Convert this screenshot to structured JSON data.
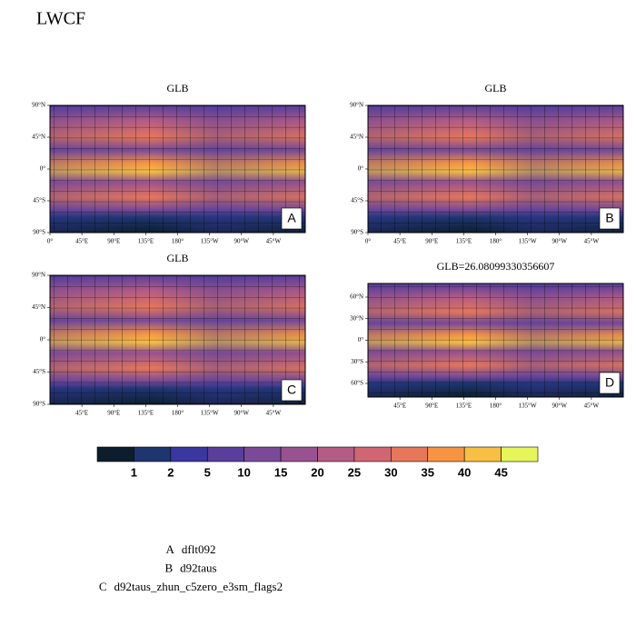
{
  "title": "LWCF",
  "panels": [
    {
      "title": "GLB",
      "label": "A",
      "yticks": [
        "90°N",
        "45°N",
        "0°",
        "45°S",
        "90°S"
      ],
      "xticks": [
        "0°",
        "45°E",
        "90°E",
        "135°E",
        "180°",
        "135°W",
        "90°W",
        "45°W"
      ]
    },
    {
      "title": "GLB",
      "label": "B",
      "yticks": [
        "90°N",
        "45°N",
        "0°",
        "45°S",
        "90°S"
      ],
      "xticks": [
        "0°",
        "45°E",
        "90°E",
        "135°E",
        "180°",
        "135°W",
        "90°W",
        "45°W"
      ]
    },
    {
      "title": "GLB",
      "label": "C",
      "yticks": [
        "90°N",
        "45°N",
        "0°",
        "45°S",
        "90°S"
      ],
      "xticks": [
        "45°E",
        "90°E",
        "135°E",
        "180°",
        "135°W",
        "90°W",
        "45°W"
      ]
    },
    {
      "title": "GLB=26.08099330356607",
      "label": "D",
      "yticks": [
        "60°N",
        "30°N",
        "0°",
        "30°S",
        "60°S"
      ],
      "xticks": [
        "45°E",
        "90°E",
        "135°E",
        "180°",
        "135°W",
        "90°W",
        "45°W"
      ]
    }
  ],
  "colorbar": {
    "levels": [
      1,
      2,
      5,
      10,
      15,
      20,
      25,
      30,
      35,
      40,
      45
    ],
    "colors": [
      "#0c1e2b",
      "#1e3570",
      "#3a37a0",
      "#5a3e9c",
      "#7a4a98",
      "#985290",
      "#b55c84",
      "#d06672",
      "#e6775a",
      "#f69444",
      "#f7bf43",
      "#e5f55a"
    ]
  },
  "legend": [
    {
      "key": "A",
      "text": "dflt092"
    },
    {
      "key": "B",
      "text": "d92taus"
    },
    {
      "key": "C",
      "text": "d92taus_zhun_c5zero_e3sm_flags2"
    }
  ]
}
